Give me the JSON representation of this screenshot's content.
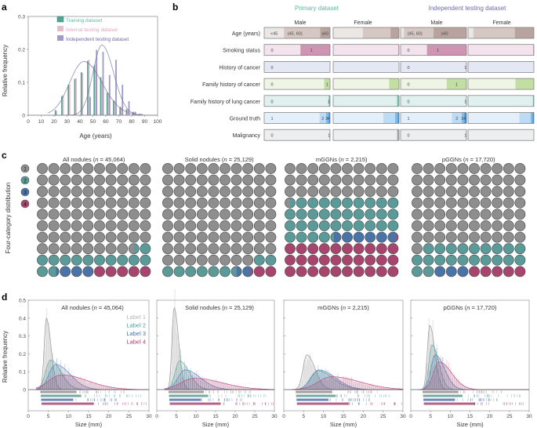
{
  "panels": {
    "a": {
      "letter": "a"
    },
    "b": {
      "letter": "b"
    },
    "c": {
      "letter": "c"
    },
    "d": {
      "letter": "d"
    }
  },
  "colors": {
    "training": "#4fa596",
    "internal": "#e2bfcc",
    "independent": "#9f9cc8",
    "label1": "#8e8e8e",
    "label2": "#5a9a98",
    "label3": "#4a74a8",
    "label4": "#a8456f",
    "primary_header": "#5fb7a0",
    "independent_header": "#6d6aa8"
  },
  "chart_data": [
    {
      "id": "a",
      "type": "bar",
      "xlabel": "Age (years)",
      "ylabel": "Relative frequency",
      "xlim": [
        0,
        100
      ],
      "ylim": [
        0,
        0.3
      ],
      "xticks": [
        0,
        10,
        20,
        30,
        40,
        50,
        60,
        70,
        80,
        90,
        100
      ],
      "yticks": [
        0,
        0.1,
        0.2,
        0.3
      ],
      "ytick_labels": [
        "0",
        "0.1",
        "0.2",
        "0.3"
      ],
      "legend_position": "top-right",
      "categories": [
        22,
        27,
        32,
        37,
        42,
        47,
        52,
        57,
        62,
        67,
        72,
        77,
        82,
        87
      ],
      "series": [
        {
          "name": "Training dataset",
          "values": [
            0.015,
            0.058,
            0.092,
            0.11,
            0.13,
            0.165,
            0.15,
            0.115,
            0.068,
            0.045,
            0.025,
            0.018,
            0.01,
            0.004
          ]
        },
        {
          "name": "Internal testing dataset",
          "values": [
            0.012,
            0.06,
            0.093,
            0.112,
            0.128,
            0.168,
            0.155,
            0.105,
            0.065,
            0.042,
            0.024,
            0.017,
            0.009,
            0.004
          ]
        },
        {
          "name": "Independent testing dataset",
          "values": [
            0,
            0,
            0,
            0,
            0,
            0.055,
            0.198,
            0.192,
            0.122,
            0.168,
            0.092,
            0.042,
            0.01,
            0.003
          ]
        }
      ],
      "fit_curves": [
        {
          "name": "Primary fit",
          "peak_x": 43,
          "peak_y": 0.163
        },
        {
          "name": "Independent fit",
          "peak_x": 57,
          "peak_y": 0.213
        }
      ]
    },
    {
      "id": "b",
      "type": "table",
      "groups": [
        "Primary dataset",
        "Independent testing dataset"
      ],
      "sexes": [
        "Male",
        "Female"
      ],
      "rows": [
        {
          "label": "Age (years)",
          "segment_labels": [
            "<45",
            "(45, 60)",
            "≥60"
          ],
          "colors": [
            "#ebe7e5",
            "#d5c7c4",
            "#b9a39e"
          ],
          "primary_male": [
            0.3,
            0.55,
            0.15
          ],
          "primary_female": [
            0.45,
            0.42,
            0.13
          ],
          "indep_male": [
            0.05,
            0.45,
            0.5
          ],
          "indep_female": [
            0.08,
            0.63,
            0.29
          ],
          "shown_labels_indep_male": [
            "(45, 60)",
            "≥60"
          ]
        },
        {
          "label": "Smoking status",
          "segment_labels": [
            "0",
            "1"
          ],
          "colors": [
            "#f3e3ec",
            "#cf94b1"
          ],
          "primary_male": [
            0.55,
            0.45
          ],
          "primary_female": [
            0.99,
            0.01
          ],
          "indep_male": [
            0.4,
            0.6
          ],
          "indep_female": [
            0.99,
            0.01
          ]
        },
        {
          "label": "History of cancer",
          "segment_labels": [
            "0",
            "1"
          ],
          "colors": [
            "#e4e7f4",
            "#bcc3e0"
          ],
          "primary_male": [
            1.0,
            0.0
          ],
          "primary_female": [
            1.0,
            0.0
          ],
          "indep_male": [
            0.995,
            0.005
          ],
          "indep_female": [
            1.0,
            0.0
          ],
          "shown_labels_primary_male": [
            "0"
          ]
        },
        {
          "label": "Family history of cancer",
          "segment_labels": [
            "0",
            "1"
          ],
          "colors": [
            "#eef5e4",
            "#c2dea3"
          ],
          "primary_male": [
            0.91,
            0.09
          ],
          "primary_female": [
            0.85,
            0.15
          ],
          "indep_male": [
            0.7,
            0.3
          ],
          "indep_female": [
            0.72,
            0.28
          ]
        },
        {
          "label": "Family history of lung cancer",
          "segment_labels": [
            "0",
            "1"
          ],
          "colors": [
            "#dff0ee",
            "#7fc2b8"
          ],
          "primary_male": [
            0.98,
            0.02
          ],
          "primary_female": [
            0.97,
            0.03
          ],
          "indep_male": [
            0.995,
            0.005
          ],
          "indep_female": [
            0.985,
            0.015
          ]
        },
        {
          "label": "Ground truth",
          "segment_labels": [
            "1",
            "2",
            "3",
            "4"
          ],
          "colors": [
            "#e3f0fb",
            "#bcdcf5",
            "#7cbcea",
            "#3d8fd8"
          ],
          "primary_male": [
            0.84,
            0.1,
            0.04,
            0.02
          ],
          "primary_female": [
            0.76,
            0.18,
            0.04,
            0.02
          ],
          "indep_male": [
            0.78,
            0.15,
            0.04,
            0.03
          ],
          "indep_female": [
            0.78,
            0.17,
            0.03,
            0.02
          ]
        },
        {
          "label": "Malignancy",
          "segment_labels": [
            "0",
            "1"
          ],
          "colors": [
            "#eceef0",
            "#a9adb2"
          ],
          "primary_male": [
            0.995,
            0.005
          ],
          "primary_female": [
            0.97,
            0.03
          ],
          "indep_male": [
            0.995,
            0.005
          ],
          "indep_female": [
            1.0,
            0.0
          ]
        }
      ]
    },
    {
      "id": "c",
      "type": "waffle",
      "ylabel": "Four-category distribution",
      "legend": [
        "1",
        "2",
        "3",
        "4"
      ],
      "panels": [
        {
          "title_prefix": "All nodules (",
          "n_label": "n",
          "title_suffix": " = 45,064)",
          "percent": [
            78.5,
            13.2,
            3.2,
            5.1
          ]
        },
        {
          "title_prefix": "Solid nodules (",
          "n_label": "n",
          "title_suffix": " = 25,129)",
          "percent": [
            88.0,
            8.5,
            1.3,
            2.2
          ]
        },
        {
          "title_prefix": "mGGNs (",
          "n_label": "n",
          "title_suffix": " = 2,215)",
          "percent": [
            30.5,
            33.8,
            5.5,
            30.2
          ]
        },
        {
          "title_prefix": "pGGNs (",
          "n_label": "n",
          "title_suffix": " = 17,720)",
          "percent": [
            71.0,
            21.0,
            3.0,
            5.0
          ]
        }
      ]
    },
    {
      "id": "d",
      "type": "area",
      "xlabel": "Size (mm)",
      "ylabel": "Relative frequency",
      "xlim": [
        0,
        30
      ],
      "ylim": [
        0,
        0.5
      ],
      "xticks": [
        0,
        5,
        10,
        15,
        20,
        25,
        30
      ],
      "yticks": [
        0,
        0.1,
        0.2,
        0.3,
        0.4,
        0.5
      ],
      "ytick_labels": [
        "0",
        "0.1",
        "0.2",
        "0.3",
        "0.4",
        "0.5"
      ],
      "legend": [
        "Label 1",
        "Label 2",
        "Label 3",
        "Label 4"
      ],
      "legend_position": "top-right",
      "panels": [
        {
          "title_prefix": "All nodules (",
          "n_label": "n",
          "title_suffix": " = 45,064)",
          "peaks": [
            {
              "x": 4.5,
              "y": 0.4,
              "sd": 0.9
            },
            {
              "x": 5.5,
              "y": 0.165,
              "sd": 2.0
            },
            {
              "x": 6.8,
              "y": 0.14,
              "sd": 2.8
            },
            {
              "x": 8.2,
              "y": 0.082,
              "sd": 5.0
            }
          ]
        },
        {
          "title_prefix": "Solid nodules (",
          "n_label": "n",
          "title_suffix": " = 25,129)",
          "peaks": [
            {
              "x": 4.4,
              "y": 0.46,
              "sd": 0.9
            },
            {
              "x": 5.8,
              "y": 0.16,
              "sd": 1.9
            },
            {
              "x": 7.2,
              "y": 0.11,
              "sd": 3.0
            },
            {
              "x": 9.5,
              "y": 0.063,
              "sd": 5.5
            }
          ]
        },
        {
          "title_prefix": "mGGNs (",
          "n_label": "n",
          "title_suffix": " = 2,215)",
          "peaks": [
            {
              "x": 5.8,
              "y": 0.195,
              "sd": 1.6
            },
            {
              "x": 8.5,
              "y": 0.105,
              "sd": 3.0
            },
            {
              "x": 8.8,
              "y": 0.11,
              "sd": 3.2
            },
            {
              "x": 12.0,
              "y": 0.072,
              "sd": 5.5
            }
          ]
        },
        {
          "title_prefix": "pGGNs (",
          "n_label": "n",
          "title_suffix": " = 17,720)",
          "peaks": [
            {
              "x": 4.8,
              "y": 0.36,
              "sd": 1.0
            },
            {
              "x": 5.4,
              "y": 0.25,
              "sd": 1.3
            },
            {
              "x": 6.2,
              "y": 0.195,
              "sd": 1.8
            },
            {
              "x": 7.2,
              "y": 0.155,
              "sd": 2.4
            }
          ]
        }
      ]
    }
  ]
}
